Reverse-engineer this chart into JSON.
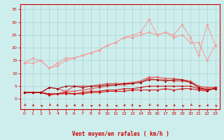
{
  "x": [
    0,
    1,
    2,
    3,
    4,
    5,
    6,
    7,
    8,
    9,
    10,
    11,
    12,
    13,
    14,
    15,
    16,
    17,
    18,
    19,
    20,
    21,
    22,
    23
  ],
  "series": [
    {
      "name": "line1_light_smooth",
      "color": "#f0a0a0",
      "linewidth": 0.8,
      "marker": "D",
      "markersize": 1.8,
      "y": [
        14,
        14,
        15,
        12,
        13,
        15,
        16,
        17,
        18,
        19,
        21,
        22,
        24,
        24,
        25,
        26,
        25,
        26,
        24,
        25,
        22,
        22,
        15,
        21
      ]
    },
    {
      "name": "line2_light_jagged",
      "color": "#f0a0a0",
      "linewidth": 0.8,
      "marker": "D",
      "markersize": 1.8,
      "y": [
        14,
        16,
        15,
        12,
        14,
        16,
        16,
        17,
        18,
        19,
        21,
        22,
        24,
        25,
        26,
        31,
        25,
        26,
        25,
        29,
        24,
        17,
        29,
        21
      ]
    },
    {
      "name": "line3_medium",
      "color": "#e06060",
      "linewidth": 0.9,
      "marker": "D",
      "markersize": 1.8,
      "y": [
        2.5,
        2.5,
        2.5,
        2,
        2,
        3,
        5,
        5,
        5,
        5.5,
        6,
        6,
        6,
        6.5,
        7,
        8.5,
        8.5,
        8,
        8,
        7.5,
        7,
        5,
        4.5,
        4.5
      ]
    },
    {
      "name": "line4_medium2",
      "color": "#e06060",
      "linewidth": 0.9,
      "marker": "D",
      "markersize": 1.8,
      "y": [
        2.5,
        2.5,
        2.5,
        4.5,
        4,
        3,
        3,
        3.5,
        4,
        4.5,
        5,
        5.5,
        5.5,
        6,
        6.5,
        8,
        7.5,
        7.5,
        7,
        7,
        6.5,
        4.5,
        4,
        4.5
      ]
    },
    {
      "name": "line5_dark1",
      "color": "#cc0000",
      "linewidth": 0.7,
      "marker": "D",
      "markersize": 1.5,
      "y": [
        2.5,
        2.5,
        2.5,
        2,
        2,
        2,
        2,
        2.5,
        3,
        3,
        3.5,
        3.5,
        4,
        4,
        4.5,
        5,
        5,
        5,
        5,
        5,
        5,
        4,
        3.5,
        4
      ]
    },
    {
      "name": "line6_dark2",
      "color": "#cc0000",
      "linewidth": 0.7,
      "marker": "D",
      "markersize": 1.5,
      "y": [
        2.5,
        2.5,
        2.5,
        1.5,
        2,
        2.5,
        2,
        2,
        2.5,
        2.5,
        3,
        3,
        3,
        3.5,
        3.5,
        3.5,
        3.5,
        4,
        3.5,
        4,
        4,
        3.5,
        3,
        4.5
      ]
    },
    {
      "name": "line7_dark3",
      "color": "#990000",
      "linewidth": 0.7,
      "marker": "^",
      "markersize": 1.8,
      "y": [
        2.5,
        2.5,
        2.5,
        4.5,
        4,
        5,
        5,
        4.5,
        5,
        5,
        5.5,
        5.5,
        6,
        6,
        6.5,
        7.5,
        7.5,
        7,
        7.5,
        7.5,
        6.5,
        4.5,
        3.5,
        4
      ]
    }
  ],
  "ylim": [
    -4,
    37
  ],
  "yticks": [
    0,
    5,
    10,
    15,
    20,
    25,
    30,
    35
  ],
  "xlim": [
    -0.5,
    23.5
  ],
  "xticks": [
    0,
    1,
    2,
    3,
    4,
    5,
    6,
    7,
    8,
    9,
    10,
    11,
    12,
    13,
    14,
    15,
    16,
    17,
    18,
    19,
    20,
    21,
    22,
    23
  ],
  "xlabel": "Vent moyen/en rafales ( km/h )",
  "bg_color": "#ceeeed",
  "grid_color": "#aed8d8",
  "axis_color": "#cc0000",
  "label_color": "#cc0000",
  "tick_color": "#cc0000",
  "arrow_angles": [
    225,
    270,
    315,
    225,
    0,
    315,
    270,
    0,
    315,
    270,
    0,
    315,
    270,
    0,
    45,
    225,
    270,
    315,
    270,
    315,
    225,
    315,
    270,
    315
  ]
}
